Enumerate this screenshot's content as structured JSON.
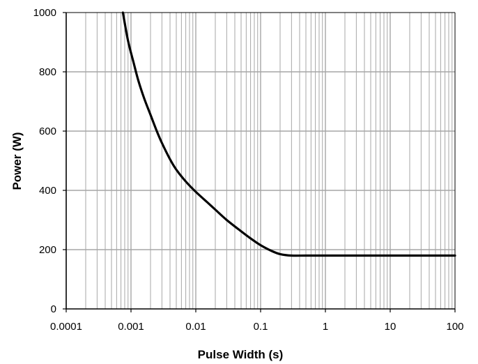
{
  "chart_data": {
    "type": "line",
    "title": "",
    "xlabel": "Pulse Width (s)",
    "ylabel": "Power (W)",
    "x_scale": "log",
    "xlim": [
      0.0001,
      100
    ],
    "ylim": [
      0,
      1000
    ],
    "x_ticks": [
      "0.0001",
      "0.001",
      "0.01",
      "0.1",
      "1",
      "10",
      "100"
    ],
    "y_ticks": [
      "0",
      "200",
      "400",
      "600",
      "800",
      "1000"
    ],
    "grid": true,
    "legend": "none",
    "line_color": "#000000",
    "grid_color": "#a6a6a6",
    "series": [
      {
        "x": [
          0.00075,
          0.0009,
          0.0011,
          0.0013,
          0.0016,
          0.002,
          0.0025,
          0.003,
          0.004,
          0.005,
          0.007,
          0.01,
          0.015,
          0.02,
          0.03,
          0.05,
          0.07,
          0.1,
          0.15,
          0.2,
          0.3,
          0.5,
          1,
          10,
          100
        ],
        "y": [
          1000,
          905,
          830,
          770,
          710,
          655,
          600,
          560,
          505,
          470,
          430,
          395,
          360,
          335,
          300,
          262,
          238,
          215,
          195,
          185,
          180,
          180,
          180,
          180,
          180
        ]
      }
    ]
  }
}
